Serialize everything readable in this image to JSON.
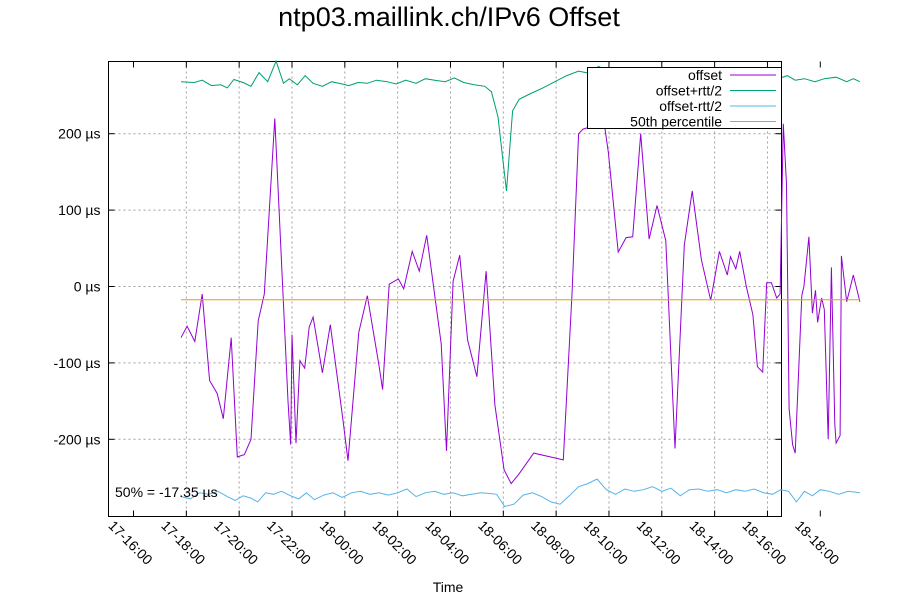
{
  "chart_data": {
    "type": "line",
    "title": "ntp03.maillink.ch/IPv6 Offset",
    "xlabel": "Time",
    "ylabel": "",
    "x_ticks": [
      "17-16:00",
      "17-18:00",
      "17-20:00",
      "17-22:00",
      "18-00:00",
      "18-02:00",
      "18-04:00",
      "18-06:00",
      "18-08:00",
      "18-10:00",
      "18-12:00",
      "18-14:00",
      "18-16:00",
      "18-18:00"
    ],
    "xlim_hours": [
      16,
      42
    ],
    "y_ticks": [
      {
        "value": 200,
        "label": "200 µs"
      },
      {
        "value": 100,
        "label": "100 µs"
      },
      {
        "value": 0,
        "label": "0 µs"
      },
      {
        "value": -100,
        "label": "-100 µs"
      },
      {
        "value": -200,
        "label": "-200 µs"
      }
    ],
    "ylim": [
      -302,
      295
    ],
    "grid": true,
    "legend_position": "top-right",
    "annotation": "50% = -17.35 µs",
    "series": [
      {
        "name": "offset",
        "color": "#9400d3",
        "points": [
          [
            17.8,
            -67
          ],
          [
            18.03,
            -52
          ],
          [
            18.32,
            -72
          ],
          [
            18.6,
            -10
          ],
          [
            18.88,
            -123
          ],
          [
            19.17,
            -140
          ],
          [
            19.4,
            -173
          ],
          [
            19.7,
            -67
          ],
          [
            19.93,
            -223
          ],
          [
            20.2,
            -220
          ],
          [
            20.45,
            -200
          ],
          [
            20.72,
            -45
          ],
          [
            20.95,
            -10
          ],
          [
            21.35,
            220
          ],
          [
            21.85,
            -150
          ],
          [
            21.95,
            -207
          ],
          [
            22.0,
            -63
          ],
          [
            22.15,
            -205
          ],
          [
            22.3,
            -97
          ],
          [
            22.48,
            -107
          ],
          [
            22.65,
            -53
          ],
          [
            22.8,
            -40
          ],
          [
            23.15,
            -113
          ],
          [
            23.45,
            -50
          ],
          [
            23.93,
            -175
          ],
          [
            24.12,
            -228
          ],
          [
            24.53,
            -60
          ],
          [
            24.85,
            -12
          ],
          [
            25.3,
            -105
          ],
          [
            25.43,
            -135
          ],
          [
            25.68,
            3
          ],
          [
            26.03,
            10
          ],
          [
            26.23,
            -3
          ],
          [
            26.55,
            46
          ],
          [
            26.82,
            20
          ],
          [
            27.1,
            67
          ],
          [
            27.65,
            -75
          ],
          [
            27.85,
            -215
          ],
          [
            28.1,
            7
          ],
          [
            28.35,
            41
          ],
          [
            28.65,
            -70
          ],
          [
            29.0,
            -118
          ],
          [
            29.35,
            20
          ],
          [
            29.68,
            -155
          ],
          [
            30.03,
            -240
          ],
          [
            30.3,
            -258
          ],
          [
            30.6,
            -245
          ],
          [
            31.15,
            -218
          ],
          [
            32.27,
            -227
          ],
          [
            32.6,
            -10
          ],
          [
            32.85,
            200
          ],
          [
            33.02,
            206
          ],
          [
            33.38,
            210
          ],
          [
            33.73,
            236
          ],
          [
            33.98,
            175
          ],
          [
            34.35,
            45
          ],
          [
            34.65,
            64
          ],
          [
            34.9,
            65
          ],
          [
            35.2,
            200
          ],
          [
            35.52,
            62
          ],
          [
            35.82,
            106
          ],
          [
            36.15,
            60
          ],
          [
            36.5,
            -212
          ],
          [
            36.85,
            54
          ],
          [
            37.15,
            125
          ],
          [
            37.5,
            35
          ],
          [
            37.85,
            -18
          ],
          [
            38.18,
            46
          ],
          [
            38.48,
            15
          ],
          [
            38.6,
            39
          ],
          [
            38.8,
            23
          ],
          [
            38.95,
            46
          ],
          [
            39.2,
            0
          ],
          [
            39.45,
            -37
          ],
          [
            39.62,
            -105
          ],
          [
            39.82,
            -112
          ],
          [
            39.97,
            5
          ],
          [
            40.15,
            5
          ],
          [
            40.35,
            -15
          ],
          [
            40.48,
            -10
          ],
          [
            40.6,
            213
          ],
          [
            40.72,
            134
          ],
          [
            40.82,
            -160
          ],
          [
            40.95,
            -207
          ],
          [
            41.05,
            -218
          ],
          [
            41.3,
            -12
          ],
          [
            41.38,
            0
          ],
          [
            41.57,
            65
          ],
          [
            41.7,
            -35
          ],
          [
            41.82,
            -5
          ],
          [
            41.9,
            -47
          ],
          [
            42.05,
            -15
          ],
          [
            42.15,
            -30
          ],
          [
            42.3,
            -200
          ],
          [
            42.42,
            25
          ],
          [
            42.55,
            -180
          ],
          [
            42.6,
            -205
          ],
          [
            42.75,
            -195
          ],
          [
            42.8,
            40
          ],
          [
            43.0,
            -20
          ],
          [
            43.25,
            15
          ],
          [
            43.5,
            -20
          ]
        ]
      },
      {
        "name": "offset+rtt/2",
        "color": "#009e73",
        "points": [
          [
            17.8,
            268
          ],
          [
            18.3,
            267
          ],
          [
            18.6,
            270
          ],
          [
            18.95,
            263
          ],
          [
            19.3,
            264
          ],
          [
            19.55,
            260
          ],
          [
            19.8,
            271
          ],
          [
            20.15,
            267
          ],
          [
            20.45,
            262
          ],
          [
            20.75,
            280
          ],
          [
            21.08,
            268
          ],
          [
            21.4,
            295
          ],
          [
            21.68,
            266
          ],
          [
            21.9,
            272
          ],
          [
            22.2,
            264
          ],
          [
            22.5,
            276
          ],
          [
            22.8,
            266
          ],
          [
            23.15,
            262
          ],
          [
            23.5,
            268
          ],
          [
            23.9,
            265
          ],
          [
            24.15,
            263
          ],
          [
            24.5,
            267
          ],
          [
            24.85,
            266
          ],
          [
            25.2,
            270
          ],
          [
            25.6,
            268
          ],
          [
            25.95,
            265
          ],
          [
            26.3,
            270
          ],
          [
            26.7,
            266
          ],
          [
            27.05,
            272
          ],
          [
            27.4,
            270
          ],
          [
            27.8,
            268
          ],
          [
            28.15,
            273
          ],
          [
            28.5,
            267
          ],
          [
            28.9,
            264
          ],
          [
            29.3,
            262
          ],
          [
            29.55,
            255
          ],
          [
            29.8,
            222
          ],
          [
            29.97,
            170
          ],
          [
            30.12,
            125
          ],
          [
            30.35,
            230
          ],
          [
            30.6,
            245
          ],
          [
            31.0,
            252
          ],
          [
            31.5,
            260
          ],
          [
            31.95,
            268
          ],
          [
            32.4,
            276
          ],
          [
            32.85,
            282
          ],
          [
            33.25,
            279
          ],
          [
            33.6,
            288
          ],
          [
            33.95,
            283
          ],
          [
            34.35,
            278
          ],
          [
            34.75,
            273
          ],
          [
            35.15,
            276
          ],
          [
            35.5,
            272
          ],
          [
            35.85,
            278
          ],
          [
            36.25,
            272
          ],
          [
            36.6,
            270
          ],
          [
            36.95,
            275
          ],
          [
            37.3,
            276
          ],
          [
            37.7,
            270
          ],
          [
            38.1,
            278
          ],
          [
            38.5,
            281
          ],
          [
            38.9,
            272
          ],
          [
            39.3,
            272
          ],
          [
            39.7,
            268
          ],
          [
            40.1,
            270
          ],
          [
            40.5,
            273
          ],
          [
            40.75,
            276
          ],
          [
            41.05,
            270
          ],
          [
            41.4,
            272
          ],
          [
            41.8,
            268
          ],
          [
            42.15,
            272
          ],
          [
            42.6,
            274
          ],
          [
            43.0,
            268
          ],
          [
            43.25,
            272
          ],
          [
            43.5,
            268
          ]
        ]
      },
      {
        "name": "offset-rtt/2",
        "color": "#56b4e9",
        "points": [
          [
            17.8,
            -275
          ],
          [
            18.15,
            -278
          ],
          [
            18.5,
            -270
          ],
          [
            18.85,
            -272
          ],
          [
            19.2,
            -268
          ],
          [
            19.55,
            -275
          ],
          [
            19.85,
            -280
          ],
          [
            20.15,
            -274
          ],
          [
            20.45,
            -277
          ],
          [
            20.7,
            -282
          ],
          [
            21.0,
            -270
          ],
          [
            21.3,
            -272
          ],
          [
            21.6,
            -268
          ],
          [
            21.95,
            -274
          ],
          [
            22.25,
            -278
          ],
          [
            22.55,
            -270
          ],
          [
            22.85,
            -279
          ],
          [
            23.2,
            -273
          ],
          [
            23.55,
            -270
          ],
          [
            23.9,
            -276
          ],
          [
            24.25,
            -270
          ],
          [
            24.6,
            -268
          ],
          [
            24.95,
            -272
          ],
          [
            25.3,
            -270
          ],
          [
            25.65,
            -273
          ],
          [
            26.0,
            -270
          ],
          [
            26.35,
            -265
          ],
          [
            26.7,
            -275
          ],
          [
            27.05,
            -270
          ],
          [
            27.4,
            -268
          ],
          [
            27.75,
            -272
          ],
          [
            28.1,
            -270
          ],
          [
            28.45,
            -274
          ],
          [
            28.8,
            -272
          ],
          [
            29.15,
            -270
          ],
          [
            29.5,
            -271
          ],
          [
            29.75,
            -272
          ],
          [
            30.05,
            -288
          ],
          [
            30.4,
            -285
          ],
          [
            30.75,
            -273
          ],
          [
            31.1,
            -270
          ],
          [
            31.45,
            -275
          ],
          [
            31.8,
            -282
          ],
          [
            32.15,
            -285
          ],
          [
            32.5,
            -274
          ],
          [
            32.85,
            -262
          ],
          [
            33.2,
            -258
          ],
          [
            33.55,
            -252
          ],
          [
            33.9,
            -266
          ],
          [
            34.25,
            -272
          ],
          [
            34.6,
            -265
          ],
          [
            34.95,
            -268
          ],
          [
            35.3,
            -266
          ],
          [
            35.65,
            -262
          ],
          [
            36.0,
            -268
          ],
          [
            36.35,
            -264
          ],
          [
            36.7,
            -274
          ],
          [
            37.05,
            -266
          ],
          [
            37.4,
            -265
          ],
          [
            37.75,
            -268
          ],
          [
            38.1,
            -266
          ],
          [
            38.45,
            -270
          ],
          [
            38.8,
            -266
          ],
          [
            39.15,
            -268
          ],
          [
            39.5,
            -265
          ],
          [
            39.85,
            -270
          ],
          [
            40.2,
            -272
          ],
          [
            40.5,
            -266
          ],
          [
            40.8,
            -268
          ],
          [
            41.1,
            -282
          ],
          [
            41.4,
            -268
          ],
          [
            41.7,
            -274
          ],
          [
            42.0,
            -266
          ],
          [
            42.35,
            -268
          ],
          [
            42.7,
            -272
          ],
          [
            43.05,
            -268
          ],
          [
            43.5,
            -270
          ]
        ]
      },
      {
        "name": "50th percentile",
        "color": "#e69f00",
        "points": [
          [
            17.8,
            -17.35
          ],
          [
            43.5,
            -17.35
          ]
        ]
      }
    ]
  }
}
